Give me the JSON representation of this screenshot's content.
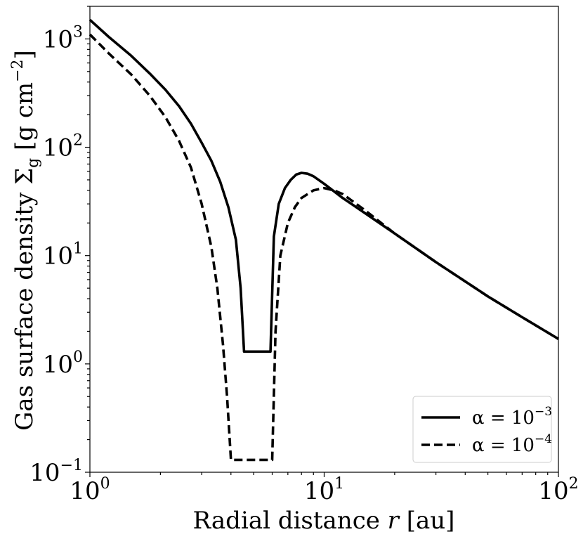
{
  "chart_data": {
    "type": "line",
    "title": "",
    "xlabel_text": "Radial distance ",
    "xlabel_var": "r",
    "xlabel_unit": " [au]",
    "ylabel": "Gas surface density Σ",
    "ylabel_sub": "g",
    "ylabel_unit": " [g cm",
    "ylabel_unit_exp": "−2",
    "ylabel_unit_close": "]",
    "xscale": "log",
    "yscale": "log",
    "xlim": [
      1,
      100
    ],
    "ylim": [
      0.1,
      2000
    ],
    "xticks": [
      {
        "value": 1,
        "base": "10",
        "exp": "0"
      },
      {
        "value": 10,
        "base": "10",
        "exp": "1"
      },
      {
        "value": 100,
        "base": "10",
        "exp": "2"
      }
    ],
    "yticks": [
      {
        "value": 0.1,
        "base": "10",
        "exp": "−1"
      },
      {
        "value": 1,
        "base": "10",
        "exp": "0"
      },
      {
        "value": 10,
        "base": "10",
        "exp": "1"
      },
      {
        "value": 100,
        "base": "10",
        "exp": "2"
      },
      {
        "value": 1000,
        "base": "10",
        "exp": "3"
      }
    ],
    "legend_position": "lower-right",
    "series": [
      {
        "name": "α = 10^−3",
        "label_prefix": "α = 10",
        "label_exp": "−3",
        "style": "solid",
        "color": "#000000",
        "x": [
          1.0,
          1.2,
          1.5,
          1.8,
          2.1,
          2.4,
          2.7,
          3.0,
          3.3,
          3.6,
          3.9,
          4.2,
          4.4,
          4.55,
          4.7,
          5.0,
          5.5,
          5.9,
          6.1,
          6.4,
          6.8,
          7.2,
          7.6,
          8.0,
          8.5,
          9.0,
          10.0,
          12.0,
          15.0,
          20.0,
          30.0,
          50.0,
          70.0,
          100.0
        ],
        "y": [
          1500,
          1050,
          700,
          480,
          340,
          240,
          165,
          110,
          75,
          48,
          28,
          14,
          5.0,
          1.3,
          1.3,
          1.3,
          1.3,
          1.3,
          15.0,
          30.0,
          42.0,
          50.0,
          56.0,
          58.0,
          57.0,
          54.0,
          46.0,
          34.0,
          24.5,
          16.0,
          8.7,
          4.2,
          2.7,
          1.7
        ]
      },
      {
        "name": "α = 10^−4",
        "label_prefix": "α = 10",
        "label_exp": "−4",
        "style": "dashed",
        "color": "#000000",
        "x": [
          1.0,
          1.2,
          1.5,
          1.8,
          2.1,
          2.4,
          2.7,
          3.0,
          3.3,
          3.5,
          3.7,
          3.85,
          4.0,
          4.1,
          5.0,
          6.0,
          6.2,
          6.5,
          7.0,
          7.5,
          8.0,
          9.0,
          10.0,
          11.0,
          12.0,
          15.0,
          20.0,
          30.0,
          50.0,
          70.0,
          100.0
        ],
        "y": [
          1100,
          740,
          470,
          300,
          190,
          115,
          65,
          30,
          12,
          5.0,
          1.5,
          0.5,
          0.13,
          0.13,
          0.13,
          0.13,
          2.0,
          10.0,
          20.0,
          28.0,
          34.0,
          40.0,
          42.0,
          40.0,
          37.0,
          26.0,
          16.0,
          8.7,
          4.2,
          2.7,
          1.7
        ]
      }
    ]
  }
}
